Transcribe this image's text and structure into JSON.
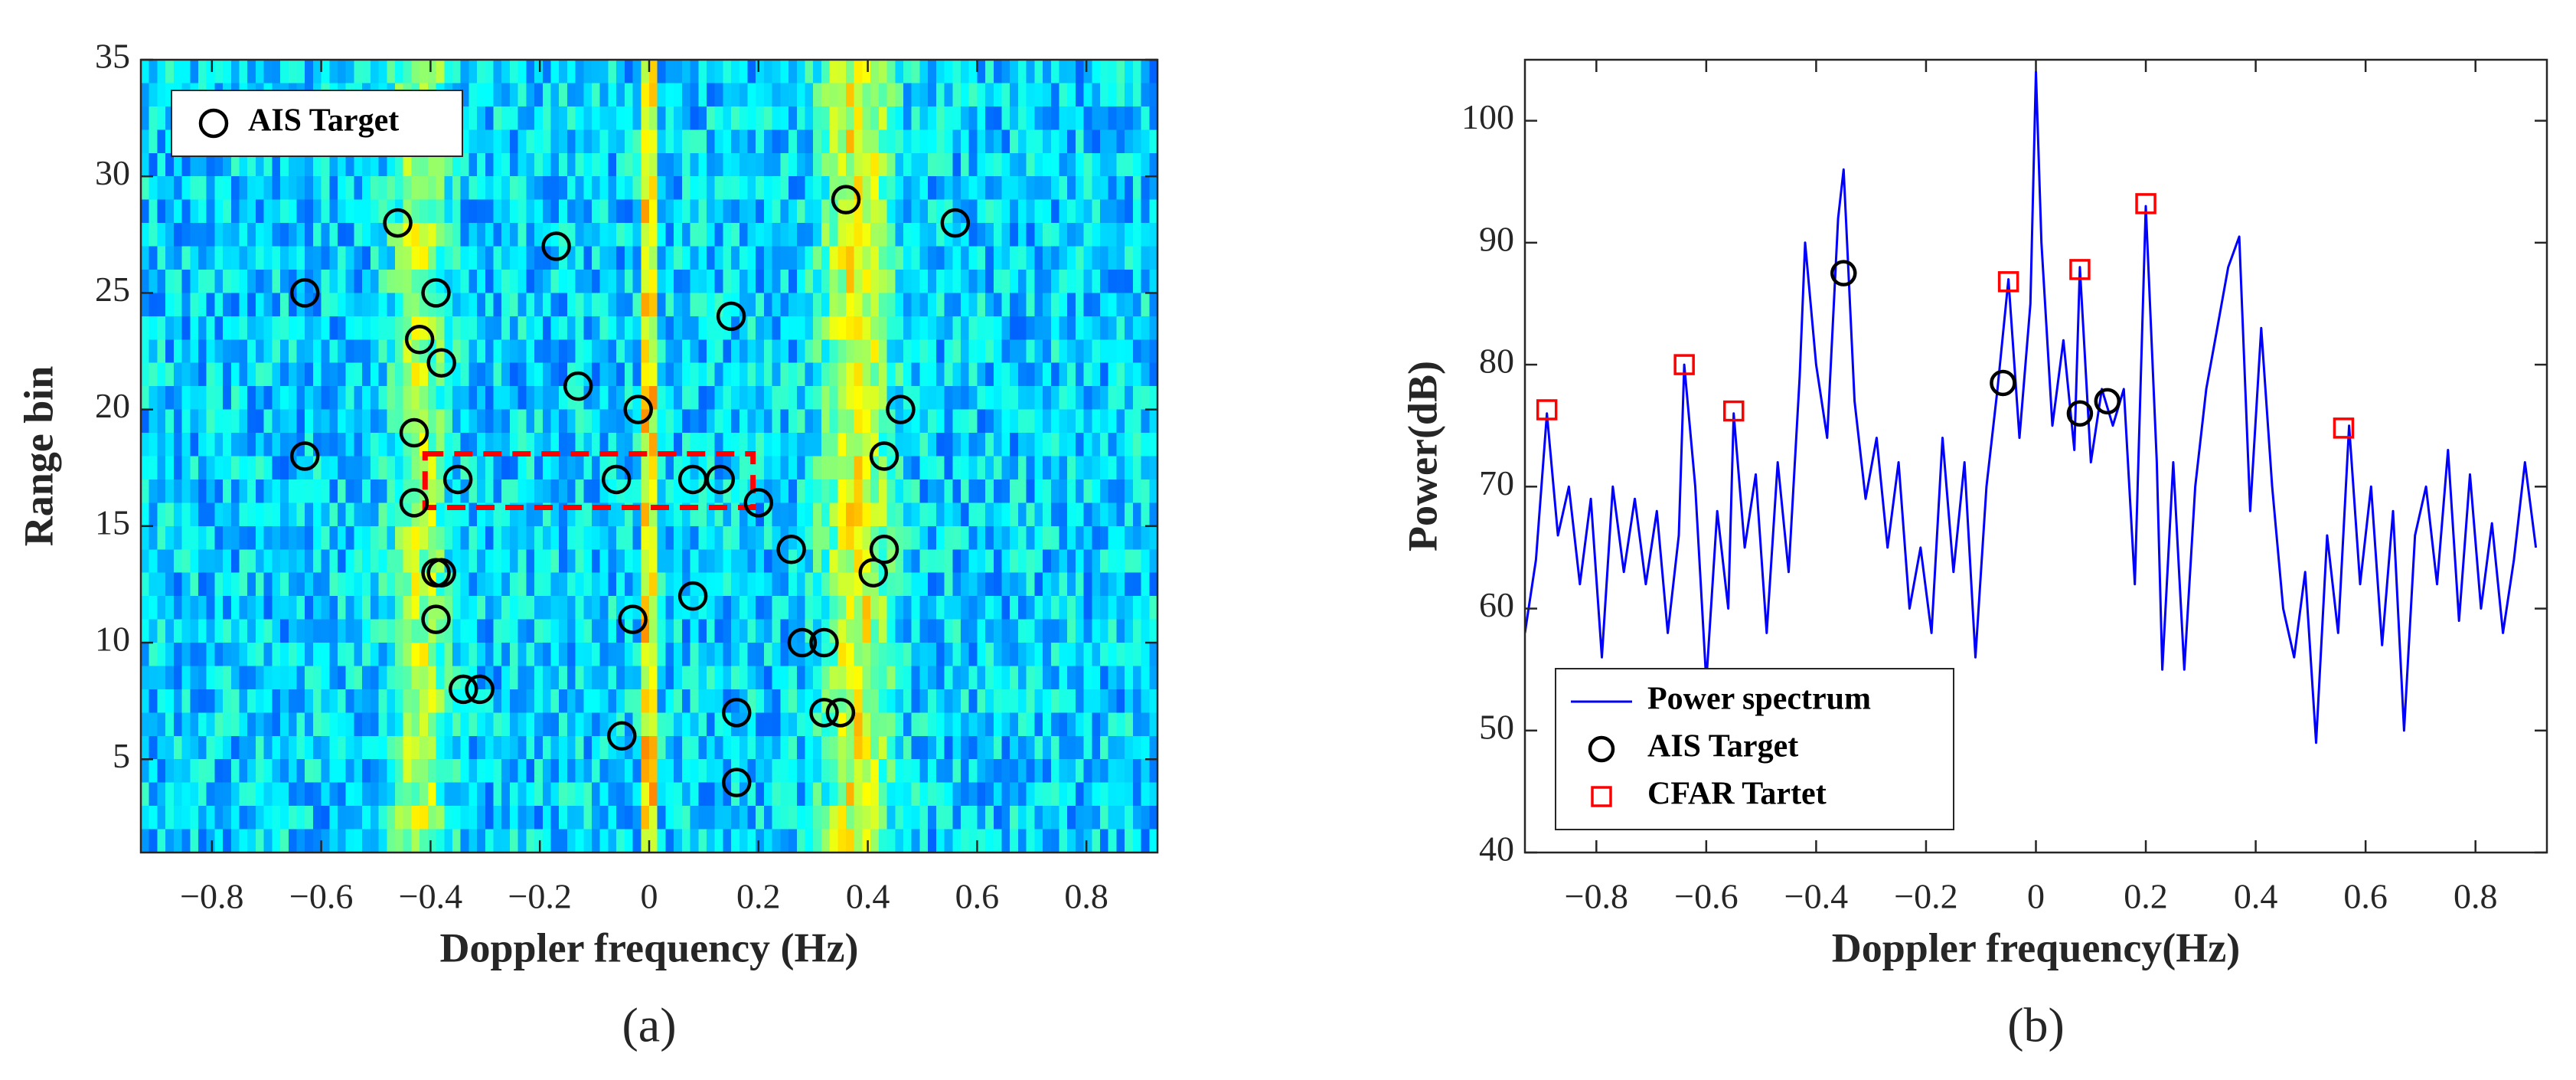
{
  "chart_data": [
    {
      "type": "scatter",
      "caption": "(a)",
      "xlabel": "Doppler frequency (Hz)",
      "ylabel": "Range bin",
      "xlim": [
        -0.93,
        0.93
      ],
      "ylim": [
        1,
        35
      ],
      "xticks": [
        {
          "value": -0.8,
          "label": "−0.8"
        },
        {
          "value": -0.6,
          "label": "−0.6"
        },
        {
          "value": -0.4,
          "label": "−0.4"
        },
        {
          "value": -0.2,
          "label": "−0.2"
        },
        0,
        0.2,
        0.4,
        0.6,
        0.8
      ],
      "yticks": [
        5,
        10,
        15,
        20,
        25,
        30,
        35
      ],
      "legend": "upper left",
      "highlight_box": {
        "x": [
          -0.41,
          0.19
        ],
        "y": [
          15.8,
          18.1
        ],
        "color": "#ff0000"
      },
      "series": [
        {
          "name": "AIS Target",
          "color": "#000000",
          "marker": "circle",
          "x": [
            -0.46,
            -0.17,
            0.36,
            0.56,
            -0.63,
            -0.39,
            0.15,
            -0.42,
            -0.38,
            -0.13,
            -0.02,
            0.46,
            -0.43,
            -0.63,
            0.43,
            -0.35,
            -0.06,
            0.08,
            0.13,
            -0.43,
            0.2,
            0.26,
            0.43,
            -0.38,
            -0.39,
            0.41,
            0.08,
            -0.39,
            -0.03,
            0.28,
            0.32,
            -0.34,
            -0.31,
            0.16,
            0.32,
            0.35,
            -0.05,
            0.16
          ],
          "values": [
            28,
            27,
            29,
            28,
            25,
            25,
            24,
            23,
            22,
            21,
            20,
            20,
            19,
            18,
            18,
            17,
            17,
            17,
            17,
            16,
            16,
            14,
            14,
            13,
            13,
            13,
            12,
            11,
            11,
            10,
            10,
            8,
            8,
            7,
            7,
            7,
            6,
            4
          ]
        }
      ]
    },
    {
      "type": "line",
      "caption": "(b)",
      "xlabel": "Doppler frequency(Hz)",
      "ylabel": "Power(dB)",
      "xlim": [
        -0.93,
        0.93
      ],
      "ylim": [
        40,
        105
      ],
      "xticks": [
        {
          "value": -0.8,
          "label": "−0.8"
        },
        {
          "value": -0.6,
          "label": "−0.6"
        },
        {
          "value": -0.4,
          "label": "−0.4"
        },
        {
          "value": -0.2,
          "label": "−0.2"
        },
        0,
        0.2,
        0.4,
        0.6,
        0.8
      ],
      "yticks": [
        40,
        50,
        60,
        70,
        80,
        90,
        100
      ],
      "legend": "lower left",
      "series": [
        {
          "name": "Power spectrum",
          "color": "#0000ff",
          "marker": "line",
          "x": [
            -0.93,
            -0.91,
            -0.89,
            -0.87,
            -0.85,
            -0.83,
            -0.81,
            -0.79,
            -0.77,
            -0.75,
            -0.73,
            -0.71,
            -0.69,
            -0.67,
            -0.65,
            -0.64,
            -0.62,
            -0.6,
            -0.58,
            -0.56,
            -0.55,
            -0.53,
            -0.51,
            -0.49,
            -0.47,
            -0.45,
            -0.43,
            -0.42,
            -0.4,
            -0.38,
            -0.36,
            -0.35,
            -0.33,
            -0.31,
            -0.29,
            -0.27,
            -0.25,
            -0.23,
            -0.21,
            -0.19,
            -0.17,
            -0.15,
            -0.13,
            -0.11,
            -0.09,
            -0.07,
            -0.05,
            -0.03,
            -0.01,
            0,
            0.01,
            0.03,
            0.05,
            0.07,
            0.08,
            0.1,
            0.12,
            0.14,
            0.16,
            0.18,
            0.2,
            0.22,
            0.23,
            0.25,
            0.27,
            0.29,
            0.31,
            0.33,
            0.35,
            0.37,
            0.39,
            0.41,
            0.43,
            0.45,
            0.47,
            0.49,
            0.51,
            0.53,
            0.55,
            0.57,
            0.59,
            0.61,
            0.63,
            0.65,
            0.67,
            0.69,
            0.71,
            0.73,
            0.75,
            0.77,
            0.79,
            0.81,
            0.83,
            0.85,
            0.87,
            0.89,
            0.91
          ],
          "values": [
            58,
            64,
            76,
            66,
            70,
            62,
            69,
            56,
            70,
            63,
            69,
            62,
            68,
            58,
            66,
            80,
            70,
            54,
            68,
            60,
            76,
            65,
            71,
            58,
            72,
            63,
            79,
            90,
            80,
            74,
            92,
            96,
            77,
            69,
            74,
            65,
            72,
            60,
            65,
            58,
            74,
            63,
            72,
            56,
            70,
            78,
            87,
            74,
            85,
            104,
            90,
            75,
            82,
            73,
            88,
            72,
            78,
            75,
            78,
            62,
            93,
            72,
            55,
            72,
            55,
            70,
            78,
            83,
            88,
            90.5,
            68,
            83,
            70,
            60,
            56,
            63,
            49,
            66,
            58,
            75,
            62,
            70,
            57,
            68,
            50,
            66,
            70,
            62,
            73,
            59,
            71,
            60,
            67,
            58,
            64,
            72,
            65
          ]
        },
        {
          "name": "AIS Target",
          "color": "#000000",
          "marker": "circle",
          "x": [
            -0.35,
            -0.06,
            0.08,
            0.13
          ],
          "values": [
            87.5,
            78.5,
            76,
            77
          ]
        },
        {
          "name": "CFAR Tartet",
          "color": "#ff0000",
          "marker": "square",
          "x": [
            -0.89,
            -0.64,
            -0.55,
            -0.05,
            0.08,
            0.2,
            0.56
          ],
          "values": [
            76.3,
            80,
            76.2,
            86.8,
            87.8,
            93.2,
            74.8
          ]
        }
      ]
    }
  ]
}
